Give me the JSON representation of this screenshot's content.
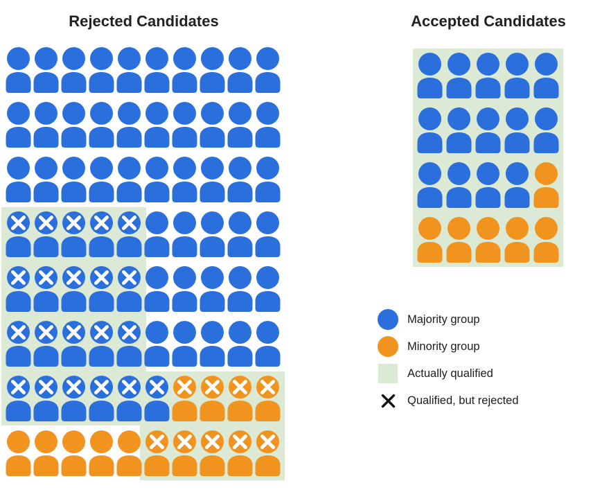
{
  "colors": {
    "majority": "#2a6fdb",
    "minority": "#f0941f",
    "qualified_bg": "#dce9d4",
    "icon_x": "#ffffff",
    "legend_x": "#111111",
    "title_text": "#202124",
    "label_text": "#1c1c1c",
    "background": "#ffffff"
  },
  "rejected": {
    "title": "Rejected Candidates",
    "rows": [
      [
        "B",
        "B",
        "B",
        "B",
        "B",
        "B",
        "B",
        "B",
        "B",
        "B"
      ],
      [
        "B",
        "B",
        "B",
        "B",
        "B",
        "B",
        "B",
        "B",
        "B",
        "B"
      ],
      [
        "B",
        "B",
        "B",
        "B",
        "B",
        "B",
        "B",
        "B",
        "B",
        "B"
      ],
      [
        "BX",
        "BX",
        "BX",
        "BX",
        "BX",
        "B",
        "B",
        "B",
        "B",
        "B"
      ],
      [
        "BX",
        "BX",
        "BX",
        "BX",
        "BX",
        "B",
        "B",
        "B",
        "B",
        "B"
      ],
      [
        "BX",
        "BX",
        "BX",
        "BX",
        "BX",
        "B",
        "B",
        "B",
        "B",
        "B"
      ],
      [
        "BX",
        "BX",
        "BX",
        "BX",
        "BX",
        "BX",
        "OX",
        "OX",
        "OX",
        "OX"
      ],
      [
        "O",
        "O",
        "O",
        "O",
        "O",
        "OX",
        "OX",
        "OX",
        "OX",
        "OX"
      ]
    ],
    "qualified_regions": [
      {
        "rows": [
          3,
          6
        ],
        "cols": [
          0,
          4
        ]
      },
      {
        "rows": [
          6,
          7
        ],
        "cols": [
          5,
          9
        ]
      }
    ]
  },
  "accepted": {
    "title": "Accepted Candidates",
    "rows": [
      [
        "B",
        "B",
        "B",
        "B",
        "B"
      ],
      [
        "B",
        "B",
        "B",
        "B",
        "B"
      ],
      [
        "B",
        "B",
        "B",
        "B",
        "O"
      ],
      [
        "O",
        "O",
        "O",
        "O",
        "O"
      ]
    ],
    "qualified_regions": [
      {
        "rows": [
          0,
          3
        ],
        "cols": [
          0,
          4
        ]
      }
    ]
  },
  "legend": {
    "items": [
      {
        "key": "majority-group",
        "swatch": "circle",
        "color_key": "majority",
        "icon_name": "majority-group-swatch",
        "label": "Majority group"
      },
      {
        "key": "minority-group",
        "swatch": "circle",
        "color_key": "minority",
        "icon_name": "minority-group-swatch",
        "label": "Minority group"
      },
      {
        "key": "actually-qualified",
        "swatch": "square",
        "color_key": "qualified_bg",
        "icon_name": "actually-qualified-swatch",
        "label": "Actually qualified"
      },
      {
        "key": "qualified-but-rejected",
        "swatch": "x",
        "icon_name": "qualified-rejected-x-icon",
        "label": "Qualified, but rejected"
      }
    ]
  },
  "chart_data": {
    "type": "pictogram",
    "title": "",
    "panels": [
      {
        "title": "Rejected Candidates",
        "grid": {
          "rows": 8,
          "cols": 10
        },
        "total": 80,
        "counts": {
          "majority_group": 66,
          "minority_group": 14,
          "actually_qualified": 30,
          "qualified_but_rejected": 30,
          "qualified_but_rejected_majority": 21,
          "qualified_but_rejected_minority": 9
        }
      },
      {
        "title": "Accepted Candidates",
        "grid": {
          "rows": 4,
          "cols": 5
        },
        "total": 20,
        "counts": {
          "majority_group": 14,
          "minority_group": 6,
          "actually_qualified": 20,
          "qualified_but_rejected": 0
        }
      }
    ],
    "legend": [
      "Majority group",
      "Minority group",
      "Actually qualified",
      "Qualified, but rejected"
    ],
    "legend_position": "right-middle",
    "grid": false
  }
}
